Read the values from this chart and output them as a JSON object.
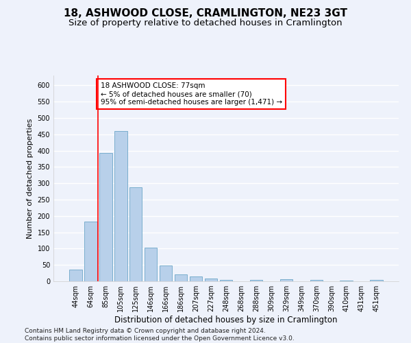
{
  "title": "18, ASHWOOD CLOSE, CRAMLINGTON, NE23 3GT",
  "subtitle": "Size of property relative to detached houses in Cramlington",
  "xlabel": "Distribution of detached houses by size in Cramlington",
  "ylabel": "Number of detached properties",
  "footer_line1": "Contains HM Land Registry data © Crown copyright and database right 2024.",
  "footer_line2": "Contains public sector information licensed under the Open Government Licence v3.0.",
  "categories": [
    "44sqm",
    "64sqm",
    "85sqm",
    "105sqm",
    "125sqm",
    "146sqm",
    "166sqm",
    "186sqm",
    "207sqm",
    "227sqm",
    "248sqm",
    "268sqm",
    "288sqm",
    "309sqm",
    "329sqm",
    "349sqm",
    "370sqm",
    "390sqm",
    "410sqm",
    "431sqm",
    "451sqm"
  ],
  "values": [
    35,
    182,
    393,
    460,
    287,
    103,
    49,
    21,
    15,
    9,
    5,
    0,
    5,
    0,
    6,
    0,
    4,
    0,
    3,
    0,
    4
  ],
  "bar_color": "#b8d0ea",
  "bar_edge_color": "#7aaecd",
  "ylim": [
    0,
    630
  ],
  "yticks": [
    0,
    50,
    100,
    150,
    200,
    250,
    300,
    350,
    400,
    450,
    500,
    550,
    600
  ],
  "red_line_x": 1.5,
  "annotation_text": "18 ASHWOOD CLOSE: 77sqm\n← 5% of detached houses are smaller (70)\n95% of semi-detached houses are larger (1,471) →",
  "annotation_box_color": "white",
  "annotation_box_edge_color": "red",
  "red_line_color": "red",
  "background_color": "#eef2fb",
  "grid_color": "white",
  "title_fontsize": 11,
  "subtitle_fontsize": 9.5,
  "xlabel_fontsize": 8.5,
  "ylabel_fontsize": 8,
  "tick_fontsize": 7,
  "annotation_fontsize": 7.5,
  "footer_fontsize": 6.5
}
